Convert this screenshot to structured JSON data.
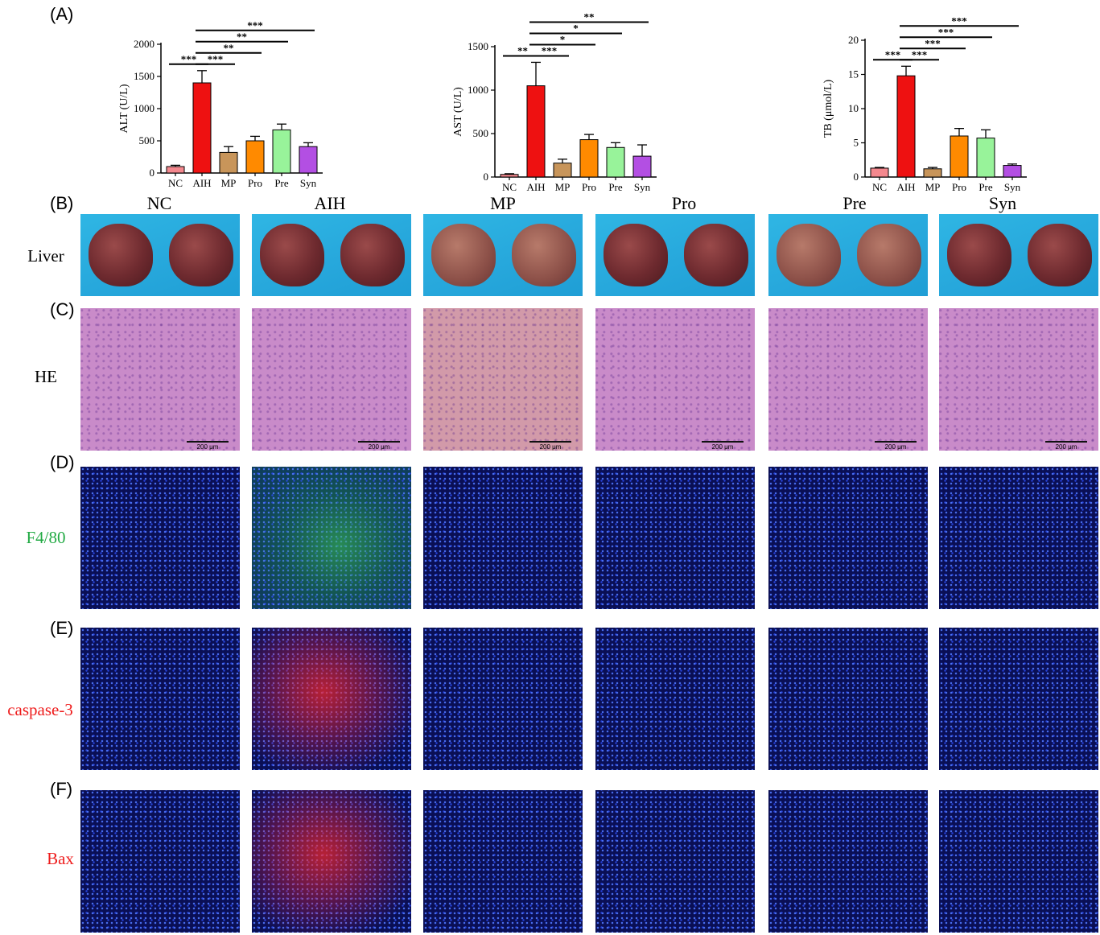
{
  "panel_letters": {
    "A": "(A)",
    "B": "(B)",
    "C": "(C)",
    "D": "(D)",
    "E": "(E)",
    "F": "(F)"
  },
  "groups": [
    "NC",
    "AIH",
    "MP",
    "Pro",
    "Pre",
    "Syn"
  ],
  "row_labels": {
    "liver": "Liver",
    "he": "HE",
    "f480": "F4/80",
    "caspase": "caspase-3",
    "bax": "Bax"
  },
  "row_label_colors": {
    "liver": "#000000",
    "he": "#000000",
    "f480": "#22aa44",
    "caspase": "#ee1c1c",
    "bax": "#ee1c1c"
  },
  "scale_bar_label": "200 μm",
  "chart_data": [
    {
      "type": "bar",
      "ylabel": "ALT (U/L)",
      "categories": [
        "NC",
        "AIH",
        "MP",
        "Pro",
        "Pre",
        "Syn"
      ],
      "values": [
        100,
        1400,
        320,
        500,
        670,
        410
      ],
      "errors": [
        20,
        190,
        90,
        70,
        90,
        60
      ],
      "ylim": [
        0,
        2000
      ],
      "yticks": [
        0,
        500,
        1000,
        1500,
        2000
      ],
      "colors": [
        "#f4888e",
        "#ee1111",
        "#c8955a",
        "#ff8a00",
        "#98f39a",
        "#b34fe3"
      ],
      "significance": [
        {
          "from": 0,
          "to": 1,
          "label": "***",
          "level": 1
        },
        {
          "from": 1,
          "to": 2,
          "label": "***",
          "level": 1
        },
        {
          "from": 1,
          "to": 3,
          "label": "**",
          "level": 2
        },
        {
          "from": 1,
          "to": 4,
          "label": "**",
          "level": 3
        },
        {
          "from": 1,
          "to": 5,
          "label": "***",
          "level": 4
        }
      ]
    },
    {
      "type": "bar",
      "ylabel": "AST (U/L)",
      "categories": [
        "NC",
        "AIH",
        "MP",
        "Pro",
        "Pre",
        "Syn"
      ],
      "values": [
        30,
        1050,
        160,
        430,
        340,
        240
      ],
      "errors": [
        8,
        270,
        45,
        60,
        55,
        130
      ],
      "ylim": [
        0,
        1500
      ],
      "yticks": [
        0,
        500,
        1000,
        1500
      ],
      "colors": [
        "#f4888e",
        "#ee1111",
        "#c8955a",
        "#ff8a00",
        "#98f39a",
        "#b34fe3"
      ],
      "significance": [
        {
          "from": 0,
          "to": 1,
          "label": "**",
          "level": 1
        },
        {
          "from": 1,
          "to": 2,
          "label": "***",
          "level": 1
        },
        {
          "from": 1,
          "to": 3,
          "label": "*",
          "level": 2
        },
        {
          "from": 1,
          "to": 4,
          "label": "*",
          "level": 3
        },
        {
          "from": 1,
          "to": 5,
          "label": "**",
          "level": 4
        }
      ]
    },
    {
      "type": "bar",
      "ylabel": "TB (μmol/L)",
      "categories": [
        "NC",
        "AIH",
        "MP",
        "Pro",
        "Pre",
        "Syn"
      ],
      "values": [
        1.3,
        14.8,
        1.2,
        6.0,
        5.7,
        1.7
      ],
      "errors": [
        0.1,
        1.4,
        0.2,
        1.1,
        1.2,
        0.2
      ],
      "ylim": [
        0,
        20
      ],
      "yticks": [
        0,
        5,
        10,
        15,
        20
      ],
      "colors": [
        "#f4888e",
        "#ee1111",
        "#c8955a",
        "#ff8a00",
        "#98f39a",
        "#b34fe3"
      ],
      "significance": [
        {
          "from": 0,
          "to": 1,
          "label": "***",
          "level": 1
        },
        {
          "from": 1,
          "to": 2,
          "label": "***",
          "level": 1
        },
        {
          "from": 1,
          "to": 3,
          "label": "***",
          "level": 2
        },
        {
          "from": 1,
          "to": 4,
          "label": "***",
          "level": 3
        },
        {
          "from": 1,
          "to": 5,
          "label": "***",
          "level": 4
        }
      ]
    }
  ]
}
